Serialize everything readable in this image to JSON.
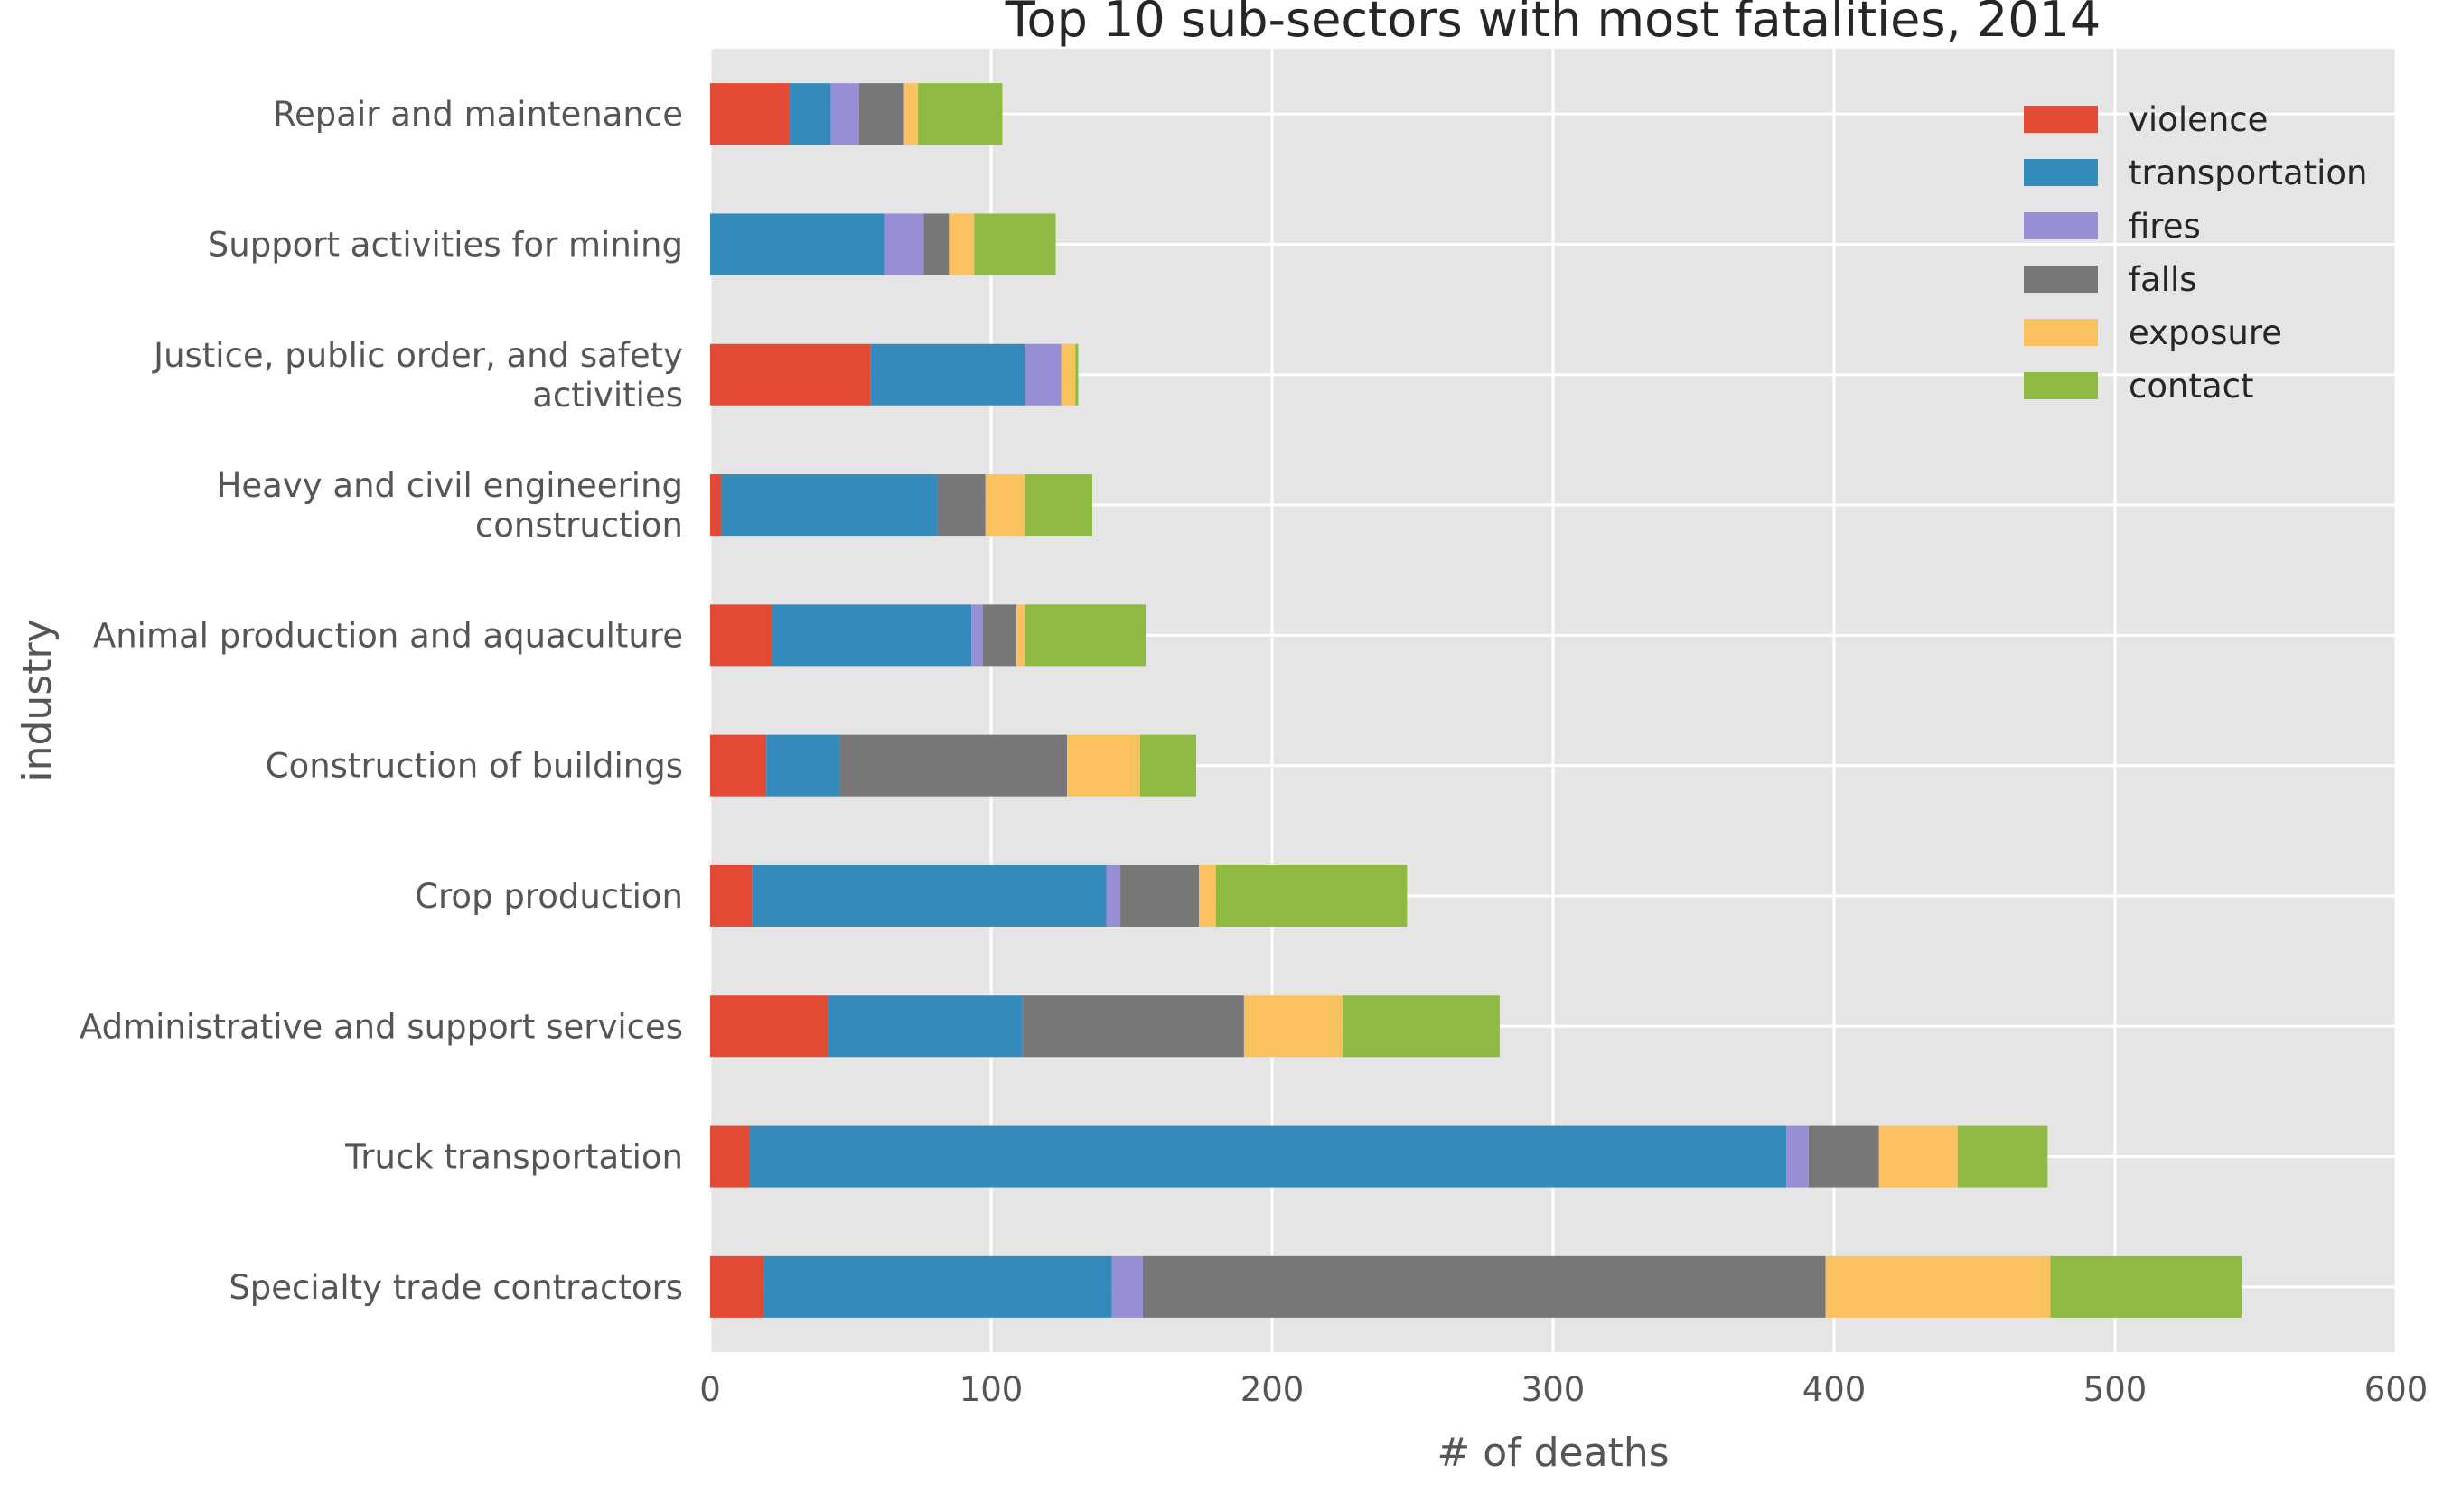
{
  "chart_data": {
    "type": "bar",
    "orientation": "horizontal",
    "stacked": true,
    "title": "Top 10 sub-sectors with most fatalities, 2014",
    "xlabel": "# of deaths",
    "ylabel": "industry",
    "xlim": [
      0,
      600
    ],
    "xticks": [
      0,
      100,
      200,
      300,
      400,
      500,
      600
    ],
    "grid": true,
    "legend_position": "top-right",
    "categories": [
      "Repair and maintenance",
      "Support activities for mining",
      "Justice, public order, and safety activities",
      "Heavy and civil engineering construction",
      "Animal production and aquaculture",
      "Construction of buildings",
      "Crop production",
      "Administrative and support services",
      "Truck transportation",
      "Specialty trade contractors"
    ],
    "category_lines": [
      [
        "Repair and maintenance"
      ],
      [
        "Support activities for mining"
      ],
      [
        "Justice, public order, and safety",
        "activities"
      ],
      [
        "Heavy and civil engineering",
        "construction"
      ],
      [
        "Animal production and aquaculture"
      ],
      [
        "Construction of buildings"
      ],
      [
        "Crop production"
      ],
      [
        "Administrative and support services"
      ],
      [
        "Truck transportation"
      ],
      [
        "Specialty trade contractors"
      ]
    ],
    "series": [
      {
        "name": "violence",
        "color": "#E24A33",
        "values": [
          28,
          0,
          57,
          4,
          22,
          20,
          15,
          42,
          14,
          19
        ]
      },
      {
        "name": "transportation",
        "color": "#348ABD",
        "values": [
          15,
          62,
          55,
          77,
          71,
          26,
          126,
          69,
          369,
          124
        ]
      },
      {
        "name": "fires",
        "color": "#988ED5",
        "values": [
          10,
          14,
          13,
          0,
          4,
          0,
          5,
          0,
          8,
          11
        ]
      },
      {
        "name": "falls",
        "color": "#777777",
        "values": [
          16,
          9,
          0,
          17,
          12,
          81,
          28,
          79,
          25,
          243
        ]
      },
      {
        "name": "exposure",
        "color": "#FBC15E",
        "values": [
          5,
          9,
          5,
          14,
          3,
          26,
          6,
          35,
          28,
          80
        ]
      },
      {
        "name": "contact",
        "color": "#8EBA42",
        "values": [
          30,
          29,
          1,
          24,
          43,
          20,
          68,
          56,
          32,
          68
        ]
      }
    ]
  }
}
